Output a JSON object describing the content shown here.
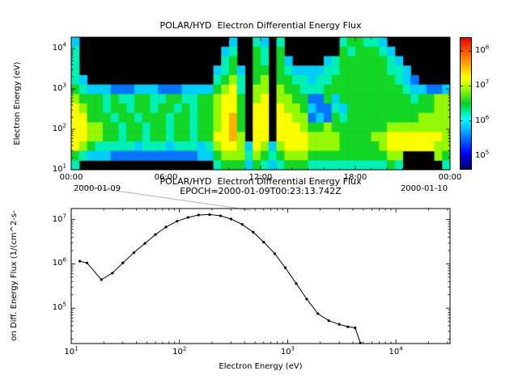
{
  "figure": {
    "bg": "#ffffff",
    "text_color": "#000000",
    "top_panel": {
      "title": "POLAR/HYD  Electron Differential Energy Flux",
      "ylabel": "Electron Energy (eV)",
      "tick_base": "10",
      "y_tick_exponents": [
        4,
        3,
        2,
        1
      ],
      "x_tick_labels": [
        "00:00",
        "06:00",
        "12:00",
        "18:00",
        "00:00"
      ],
      "x_date_left": "2000-01-09",
      "x_date_right": "2000-01-10"
    },
    "colorbar": {
      "tick_base": "10",
      "tick_exponents": [
        8,
        7,
        6,
        5
      ],
      "vmin_log": 4.6,
      "vmax_log": 8.4,
      "stops": [
        {
          "t": 0.0,
          "c": "#00006e"
        },
        {
          "t": 0.12,
          "c": "#0000ff"
        },
        {
          "t": 0.28,
          "c": "#00a0ff"
        },
        {
          "t": 0.38,
          "c": "#00ffff"
        },
        {
          "t": 0.5,
          "c": "#00d228"
        },
        {
          "t": 0.62,
          "c": "#aaff00"
        },
        {
          "t": 0.7,
          "c": "#ffff00"
        },
        {
          "t": 0.82,
          "c": "#ff9600"
        },
        {
          "t": 1.0,
          "c": "#e60000"
        }
      ]
    },
    "bottom_panel": {
      "title_line1": "POLAR/HYD  Electron Differential Energy Flux",
      "title_line2": "EPOCH=2000-01-09T00:23:13.742Z",
      "ylabel": "on Diff. Energy Flux (1/(cm^2-s-",
      "xlabel": "Electron Energy (eV)",
      "tick_base": "10",
      "x_tick_exponents": [
        1,
        2,
        3,
        4
      ],
      "y_tick_exponents": [
        5,
        6,
        7
      ]
    }
  },
  "chart_data": [
    {
      "type": "heatmap",
      "title": "POLAR/HYD  Electron Differential Energy Flux",
      "x_tick_labels": [
        "00:00",
        "06:00",
        "12:00",
        "18:00",
        "00:00"
      ],
      "x_start": "2000-01-09 00:00",
      "x_end": "2000-01-10 00:00",
      "time_bin_hours": 0.5,
      "ylabel": "Electron Energy (eV)",
      "y_range_log10_eV": [
        1.0,
        4.28
      ],
      "color_scale_log10_flux": [
        4.6,
        8.4
      ],
      "colormap": "rainbow",
      "value_base": 4.8,
      "value_step": 0.35,
      "value_encoding": "each char is one 30-min x 1-energy-bin cell; '.' = below scale (black); digit d -> log10(flux) = value_base + value_step * d",
      "rows_top_to_bottom_log10_eV": [
        4.1,
        3.9,
        3.6,
        3.4,
        3.1,
        2.9,
        2.6,
        2.4,
        2.1,
        1.9,
        1.6,
        1.4,
        1.2,
        1.0
      ],
      "grid": [
        "3...................3..43.4.......455443........",
        "4..................34..54.5.......5455543.......",
        "4..................45..54.53....3455555543......",
        "4.................3453.55.54333344555555443.....",
        "43................4564.56.554434455555555432....",
        "5433322233322233335674.66.6554445555555555433223",
        "6555454455445544556775.67.6655225355555555545566",
        "7655455455455454556775.77.7665322435555555555566",
        "7755545545554554556785.77.7766232545555555556666",
        "7766554554554554556785.77.7776556555555566666666",
        "7766554554554554557786.77.7777666655556677777776",
        "765444443444344434677637636777666655555677777766",
        "543332222222222233566646545666555555555566....65",
        "4.................455535434555444444444454.....4"
      ]
    },
    {
      "type": "line",
      "title": "POLAR/HYD  Electron Differential Energy Flux EPOCH=2000-01-09T00:23:13.742Z",
      "xlabel": "Electron Energy (eV)",
      "ylabel": "on Diff. Energy Flux (1/(cm^2-s-",
      "xlim_log10": [
        1,
        4.5
      ],
      "ylim_log10": [
        4.2,
        7.25
      ],
      "marker": "point",
      "color": "#000000",
      "x_eV": [
        12,
        14,
        19,
        24,
        30,
        38,
        48,
        60,
        75,
        95,
        120,
        150,
        190,
        240,
        300,
        380,
        480,
        600,
        760,
        950,
        1200,
        1500,
        1900,
        2400,
        3000,
        3600,
        4200,
        4700
      ],
      "y_flux": [
        1150000.0,
        1050000.0,
        440000.0,
        620000.0,
        1050000.0,
        1800000.0,
        2900000.0,
        4600000.0,
        6800000.0,
        9200000.0,
        11200000.0,
        12700000.0,
        13000000.0,
        12200000.0,
        10300000.0,
        7800000.0,
        5200000.0,
        3100000.0,
        1700000.0,
        820000.0,
        360000.0,
        160000.0,
        75000.0,
        52000.0,
        43000.0,
        38000.0,
        36000.0,
        15000.0
      ]
    }
  ]
}
